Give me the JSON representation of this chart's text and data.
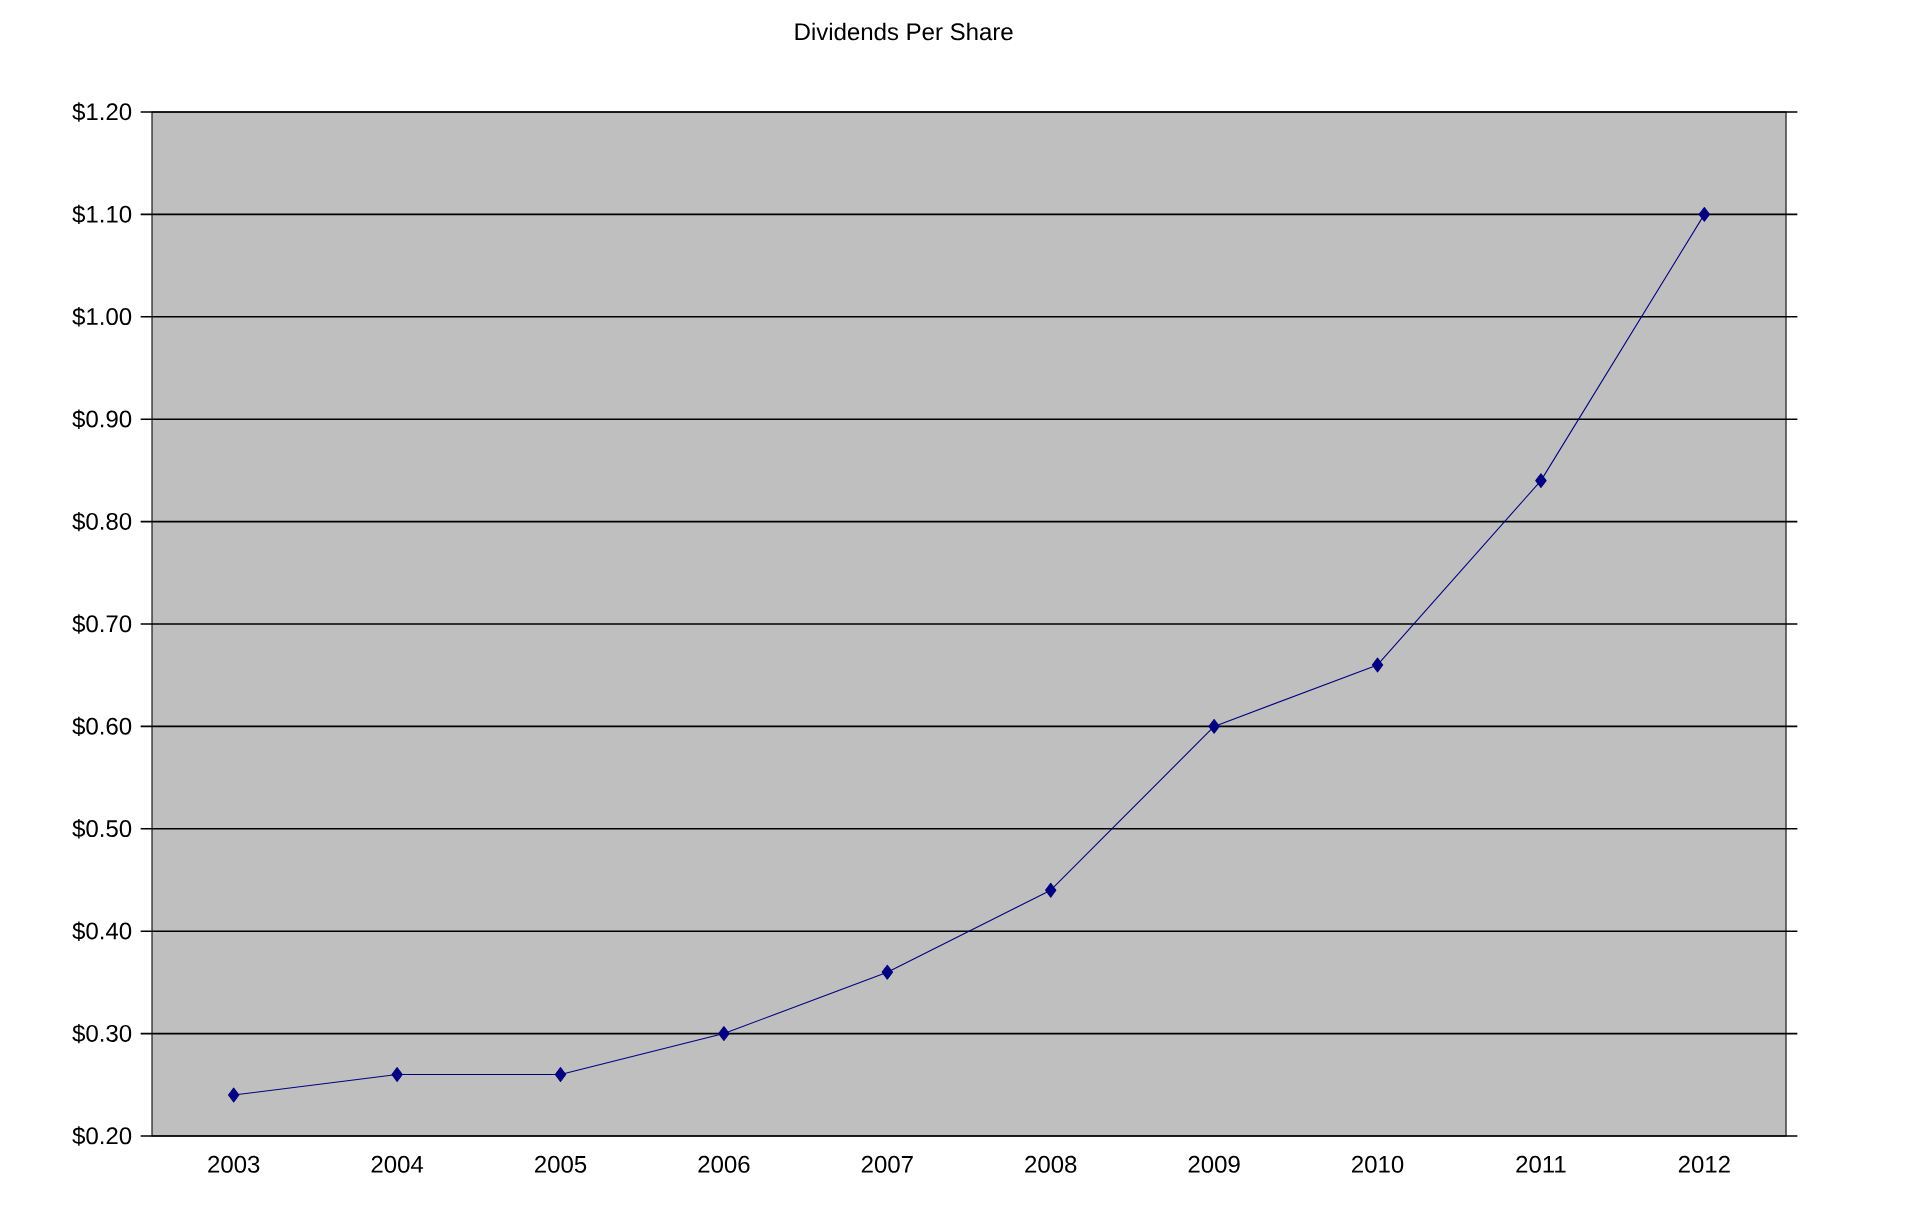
{
  "chart_data": {
    "type": "line",
    "title": "Dividends Per Share",
    "categories": [
      "2003",
      "2004",
      "2005",
      "2006",
      "2007",
      "2008",
      "2009",
      "2010",
      "2011",
      "2012"
    ],
    "series": [
      {
        "color": "#000080",
        "values": [
          0.24,
          0.26,
          0.26,
          0.3,
          0.36,
          0.44,
          0.6,
          0.66,
          0.84,
          1.1
        ]
      }
    ],
    "ylim": [
      0.2,
      1.2
    ],
    "yticks": [
      {
        "value": 0.2,
        "label": "$0.20"
      },
      {
        "value": 0.3,
        "label": "$0.30"
      },
      {
        "value": 0.4,
        "label": "$0.40"
      },
      {
        "value": 0.5,
        "label": "$0.50"
      },
      {
        "value": 0.6,
        "label": "$0.60"
      },
      {
        "value": 0.7,
        "label": "$0.70"
      },
      {
        "value": 0.8,
        "label": "$0.80"
      },
      {
        "value": 0.9,
        "label": "$0.90"
      },
      {
        "value": 1.0,
        "label": "$1.00"
      },
      {
        "value": 1.1,
        "label": "$1.10"
      },
      {
        "value": 1.2,
        "label": "$1.20"
      }
    ],
    "grid": "y",
    "marker": "diamond",
    "line_style": "solid"
  }
}
